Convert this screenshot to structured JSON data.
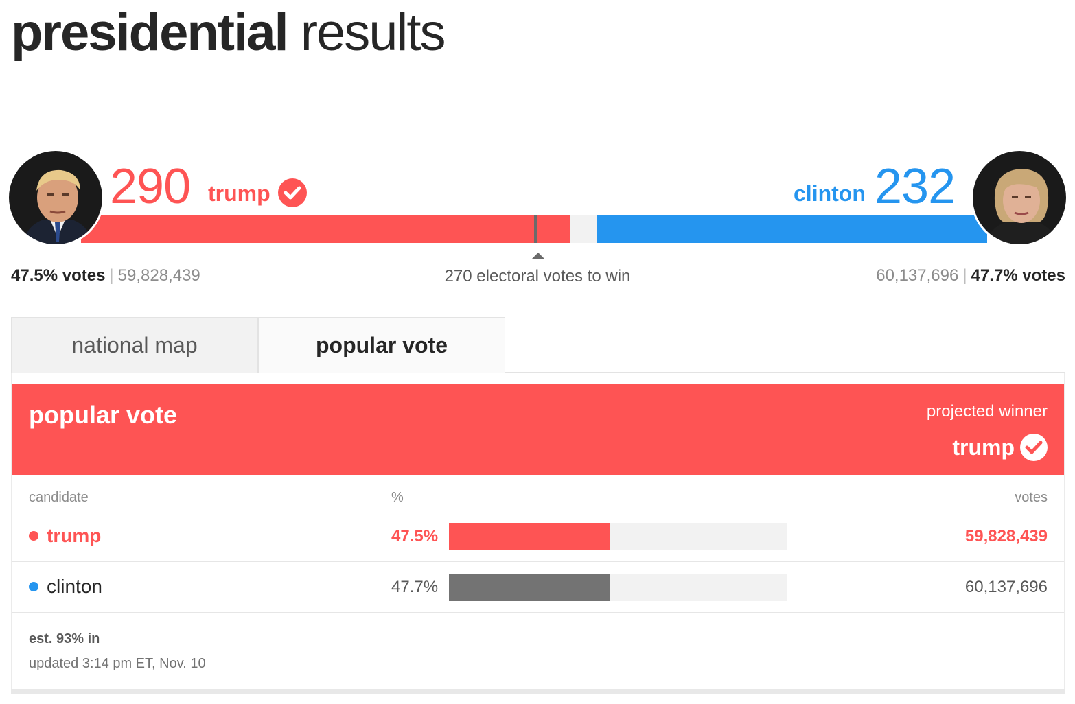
{
  "title": {
    "bold": "presidential",
    "light": "results"
  },
  "colors": {
    "republican": "#fe5454",
    "democrat": "#2595ef",
    "gray_bar": "#737373",
    "track": "#f2f2f2"
  },
  "electoral": {
    "total": 538,
    "to_win_value": 270,
    "to_win_label": "270 electoral votes to win",
    "rep": {
      "name": "trump",
      "ev": "290",
      "ev_value": 290,
      "winner": true,
      "pct_label": "47.5% votes",
      "votes": "59,828,439",
      "avatar_icon": "portrait-trump"
    },
    "dem": {
      "name": "clinton",
      "ev": "232",
      "ev_value": 232,
      "winner": false,
      "pct_label": "47.7% votes",
      "votes": "60,137,696",
      "avatar_icon": "portrait-clinton"
    }
  },
  "tabs": [
    {
      "label": "national map",
      "active": false
    },
    {
      "label": "popular vote",
      "active": true
    }
  ],
  "panel": {
    "title": "popular vote",
    "projected_label": "projected winner",
    "projected_name": "trump",
    "headers": {
      "candidate": "candidate",
      "pct": "%",
      "votes": "votes"
    },
    "rows": [
      {
        "name": "trump",
        "pct_label": "47.5%",
        "pct_value": 47.5,
        "votes": "59,828,439",
        "color": "#fe5454",
        "bar_color": "#fe5454",
        "emphasis": true
      },
      {
        "name": "clinton",
        "pct_label": "47.7%",
        "pct_value": 47.7,
        "votes": "60,137,696",
        "color": "#2595ef",
        "bar_color": "#737373",
        "emphasis": false
      }
    ],
    "reporting": "est. 93% in",
    "updated": "updated 3:14 pm ET, Nov. 10"
  }
}
